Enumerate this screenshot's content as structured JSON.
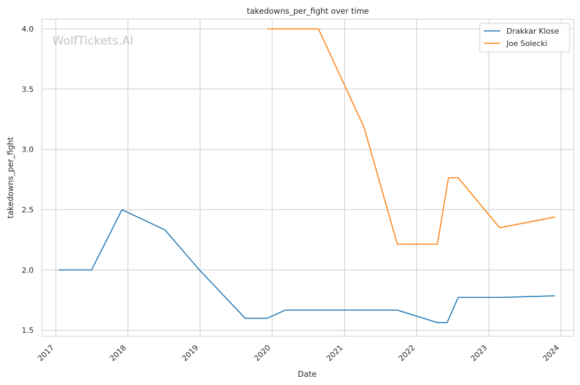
{
  "chart_data": {
    "type": "line",
    "title": "takedowns_per_fight over time",
    "xlabel": "Date",
    "ylabel": "takedowns_per_fight",
    "watermark": "WolfTickets.AI",
    "x_ticks": [
      "2017",
      "2018",
      "2019",
      "2020",
      "2021",
      "2022",
      "2023",
      "2024"
    ],
    "y_ticks": [
      "1.5",
      "2.0",
      "2.5",
      "3.0",
      "3.5",
      "4.0"
    ],
    "xlim": [
      "2016-10-23",
      "2024-03-06"
    ],
    "ylim": [
      1.45,
      4.08
    ],
    "grid": true,
    "legend_position": "top-right",
    "colors": {
      "Drakkar Klose": "#1f77b4",
      "Joe Solecki": "#ff7f0e"
    },
    "series": [
      {
        "name": "Drakkar Klose",
        "points": [
          {
            "x": "2017-01-15",
            "y": 2.0
          },
          {
            "x": "2017-07-01",
            "y": 2.0
          },
          {
            "x": "2017-12-02",
            "y": 2.5
          },
          {
            "x": "2018-07-07",
            "y": 2.333
          },
          {
            "x": "2018-12-29",
            "y": 2.0
          },
          {
            "x": "2019-08-17",
            "y": 1.6
          },
          {
            "x": "2019-12-07",
            "y": 1.6
          },
          {
            "x": "2020-03-07",
            "y": 1.667
          },
          {
            "x": "2021-09-25",
            "y": 1.667
          },
          {
            "x": "2022-04-16",
            "y": 1.563
          },
          {
            "x": "2022-06-04",
            "y": 1.563
          },
          {
            "x": "2022-07-30",
            "y": 1.772
          },
          {
            "x": "2023-02-25",
            "y": 1.772
          },
          {
            "x": "2023-12-02",
            "y": 1.786
          }
        ]
      },
      {
        "name": "Joe Solecki",
        "points": [
          {
            "x": "2019-12-07",
            "y": 4.0
          },
          {
            "x": "2020-08-22",
            "y": 4.0
          },
          {
            "x": "2021-04-10",
            "y": 3.182
          },
          {
            "x": "2021-09-25",
            "y": 2.214
          },
          {
            "x": "2022-04-16",
            "y": 2.214
          },
          {
            "x": "2022-06-11",
            "y": 2.765
          },
          {
            "x": "2022-07-30",
            "y": 2.765
          },
          {
            "x": "2023-02-25",
            "y": 2.35
          },
          {
            "x": "2023-12-02",
            "y": 2.44
          }
        ]
      }
    ]
  }
}
